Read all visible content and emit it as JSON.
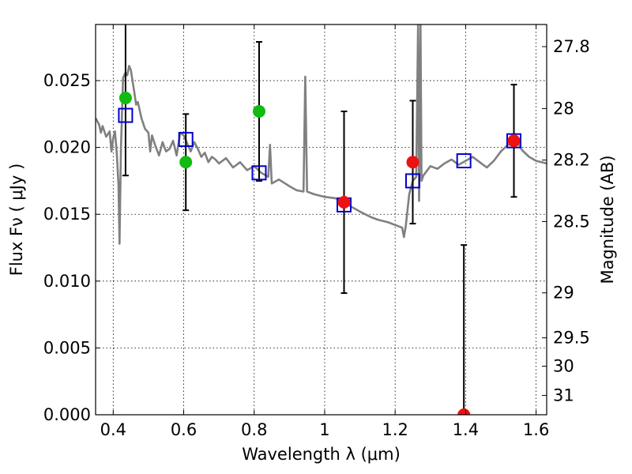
{
  "chart_data": {
    "type": "scatter",
    "xlabel": "Wavelength  λ (μm)",
    "ylabel": "Flux  Fν  ( μJy )",
    "y2label": "Magnitude (AB)",
    "xlim": [
      0.35,
      1.63
    ],
    "ylim": [
      0.0,
      0.0292
    ],
    "grid": true,
    "x_ticks": [
      {
        "value": 0.4,
        "label": "0.4"
      },
      {
        "value": 0.6,
        "label": "0.6"
      },
      {
        "value": 0.8,
        "label": "0.8"
      },
      {
        "value": 1.0,
        "label": "1"
      },
      {
        "value": 1.2,
        "label": "1.2"
      },
      {
        "value": 1.4,
        "label": "1.4"
      },
      {
        "value": 1.6,
        "label": "1.6"
      }
    ],
    "y_ticks": [
      {
        "value": 0.0,
        "label": "0.000"
      },
      {
        "value": 0.005,
        "label": "0.005"
      },
      {
        "value": 0.01,
        "label": "0.010"
      },
      {
        "value": 0.015,
        "label": "0.015"
      },
      {
        "value": 0.02,
        "label": "0.020"
      },
      {
        "value": 0.025,
        "label": "0.025"
      }
    ],
    "y2_ticks": [
      {
        "mag": 27.8,
        "label": "27.8"
      },
      {
        "mag": 28.0,
        "label": "28"
      },
      {
        "mag": 28.2,
        "label": "28.2"
      },
      {
        "mag": 28.5,
        "label": "28.5"
      },
      {
        "mag": 29.0,
        "label": "29"
      },
      {
        "mag": 29.5,
        "label": "29.5"
      },
      {
        "mag": 30.0,
        "label": "30"
      },
      {
        "mag": 31.0,
        "label": "31"
      }
    ],
    "colors": {
      "sed_line": "#808080",
      "model_square": "#0000cc",
      "detection_green": "#11bb11",
      "detection_red": "#ee1111",
      "error_bar": "#000000"
    },
    "observed_points": [
      {
        "x": 0.435,
        "y": 0.0237,
        "err": 0.0058,
        "color": "green"
      },
      {
        "x": 0.606,
        "y": 0.0189,
        "err": 0.0036,
        "color": "green"
      },
      {
        "x": 0.814,
        "y": 0.0227,
        "err": 0.0052,
        "color": "green"
      },
      {
        "x": 1.055,
        "y": 0.0159,
        "err": 0.0068,
        "color": "red"
      },
      {
        "x": 1.25,
        "y": 0.0189,
        "err": 0.0046,
        "color": "red"
      },
      {
        "x": 1.395,
        "y": 0.0,
        "err": 0.0127,
        "color": "red"
      },
      {
        "x": 1.537,
        "y": 0.0205,
        "err": 0.0042,
        "color": "red"
      }
    ],
    "model_points": [
      {
        "x": 0.435,
        "y": 0.0224
      },
      {
        "x": 0.606,
        "y": 0.0206
      },
      {
        "x": 0.814,
        "y": 0.0181
      },
      {
        "x": 1.055,
        "y": 0.0157
      },
      {
        "x": 1.25,
        "y": 0.0175
      },
      {
        "x": 1.395,
        "y": 0.019
      },
      {
        "x": 1.537,
        "y": 0.0205
      }
    ],
    "sed_curve": [
      [
        0.35,
        0.0222
      ],
      [
        0.36,
        0.0217
      ],
      [
        0.365,
        0.0211
      ],
      [
        0.37,
        0.0216
      ],
      [
        0.38,
        0.0208
      ],
      [
        0.39,
        0.0212
      ],
      [
        0.395,
        0.0197
      ],
      [
        0.4,
        0.0207
      ],
      [
        0.405,
        0.0212
      ],
      [
        0.41,
        0.0196
      ],
      [
        0.415,
        0.0172
      ],
      [
        0.418,
        0.0128
      ],
      [
        0.422,
        0.0199
      ],
      [
        0.428,
        0.0252
      ],
      [
        0.435,
        0.0256
      ],
      [
        0.44,
        0.0254
      ],
      [
        0.445,
        0.0261
      ],
      [
        0.45,
        0.0258
      ],
      [
        0.46,
        0.0241
      ],
      [
        0.465,
        0.0232
      ],
      [
        0.47,
        0.0234
      ],
      [
        0.48,
        0.0222
      ],
      [
        0.49,
        0.0214
      ],
      [
        0.5,
        0.0211
      ],
      [
        0.505,
        0.0197
      ],
      [
        0.51,
        0.0209
      ],
      [
        0.52,
        0.0201
      ],
      [
        0.53,
        0.0194
      ],
      [
        0.54,
        0.0204
      ],
      [
        0.55,
        0.0197
      ],
      [
        0.56,
        0.0199
      ],
      [
        0.57,
        0.0205
      ],
      [
        0.58,
        0.0194
      ],
      [
        0.59,
        0.0211
      ],
      [
        0.6,
        0.0209
      ],
      [
        0.61,
        0.0203
      ],
      [
        0.62,
        0.0197
      ],
      [
        0.63,
        0.0204
      ],
      [
        0.64,
        0.0199
      ],
      [
        0.65,
        0.0193
      ],
      [
        0.66,
        0.0196
      ],
      [
        0.67,
        0.0189
      ],
      [
        0.68,
        0.0193
      ],
      [
        0.69,
        0.0191
      ],
      [
        0.7,
        0.0188
      ],
      [
        0.72,
        0.0192
      ],
      [
        0.74,
        0.0185
      ],
      [
        0.76,
        0.0189
      ],
      [
        0.78,
        0.0183
      ],
      [
        0.8,
        0.0186
      ],
      [
        0.82,
        0.0181
      ],
      [
        0.84,
        0.0178
      ],
      [
        0.845,
        0.0202
      ],
      [
        0.85,
        0.0173
      ],
      [
        0.87,
        0.0176
      ],
      [
        0.9,
        0.0171
      ],
      [
        0.92,
        0.0168
      ],
      [
        0.94,
        0.0167
      ],
      [
        0.945,
        0.0253
      ],
      [
        0.95,
        0.0167
      ],
      [
        0.97,
        0.0165
      ],
      [
        1.0,
        0.0163
      ],
      [
        1.03,
        0.0162
      ],
      [
        1.05,
        0.016
      ],
      [
        1.08,
        0.0155
      ],
      [
        1.1,
        0.0152
      ],
      [
        1.13,
        0.0148
      ],
      [
        1.15,
        0.0146
      ],
      [
        1.18,
        0.0144
      ],
      [
        1.2,
        0.0142
      ],
      [
        1.22,
        0.014
      ],
      [
        1.225,
        0.0133
      ],
      [
        1.23,
        0.0141
      ],
      [
        1.24,
        0.0165
      ],
      [
        1.25,
        0.0175
      ],
      [
        1.26,
        0.0178
      ],
      [
        1.265,
        0.0292
      ],
      [
        1.268,
        0.016
      ],
      [
        1.272,
        0.0292
      ],
      [
        1.275,
        0.0175
      ],
      [
        1.28,
        0.0179
      ],
      [
        1.3,
        0.0186
      ],
      [
        1.32,
        0.0184
      ],
      [
        1.34,
        0.0188
      ],
      [
        1.36,
        0.0191
      ],
      [
        1.38,
        0.0187
      ],
      [
        1.4,
        0.019
      ],
      [
        1.42,
        0.0193
      ],
      [
        1.44,
        0.0189
      ],
      [
        1.46,
        0.0185
      ],
      [
        1.48,
        0.019
      ],
      [
        1.5,
        0.0197
      ],
      [
        1.52,
        0.0202
      ],
      [
        1.55,
        0.0203
      ],
      [
        1.56,
        0.0198
      ],
      [
        1.58,
        0.0193
      ],
      [
        1.6,
        0.019
      ],
      [
        1.63,
        0.0188
      ]
    ]
  }
}
